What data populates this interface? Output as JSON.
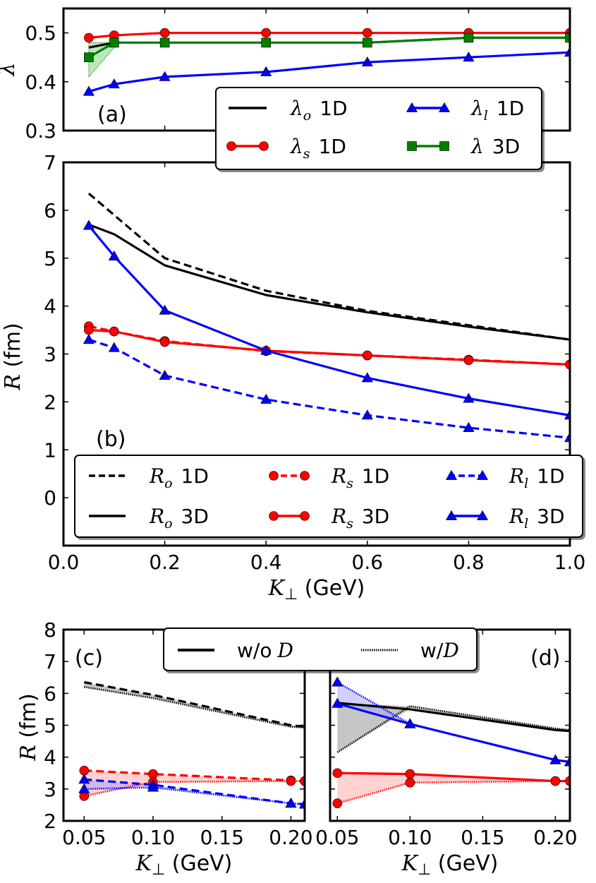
{
  "colors": {
    "black": "#000000",
    "red": "#ff0000",
    "blue": "#0000ff",
    "green": "#007f00",
    "green_fill": "#66cc66",
    "red_fill": "#ff9999",
    "blue_fill": "#9999ff",
    "gray_fill": "#808080"
  },
  "chart_data": [
    {
      "id": "a",
      "type": "line",
      "panel_label": "(a)",
      "ylabel": "λ",
      "xlim": [
        0.0,
        1.0
      ],
      "ylim": [
        0.3,
        0.55
      ],
      "yticks": [
        "0.3",
        "0.4",
        "0.5"
      ],
      "x": [
        0.05,
        0.1,
        0.2,
        0.4,
        0.6,
        0.8,
        1.0
      ],
      "series": [
        {
          "name": "λo 1D",
          "symbol": "λ",
          "sub": "o",
          "dim": "1D",
          "color": "black",
          "marker": "none",
          "dash": false,
          "values": [
            0.47,
            0.48,
            0.48,
            0.48,
            0.48,
            0.49,
            0.49
          ]
        },
        {
          "name": "λs 1D",
          "symbol": "λ",
          "sub": "s",
          "dim": "1D",
          "color": "red",
          "marker": "circle",
          "dash": false,
          "values": [
            0.49,
            0.495,
            0.5,
            0.5,
            0.5,
            0.5,
            0.5
          ]
        },
        {
          "name": "λl 1D",
          "symbol": "λ",
          "sub": "l",
          "dim": "1D",
          "color": "blue",
          "marker": "triangle",
          "dash": false,
          "values": [
            0.38,
            0.395,
            0.41,
            0.42,
            0.44,
            0.45,
            0.46
          ]
        },
        {
          "name": "λ 3D",
          "symbol": "λ",
          "sub": "",
          "dim": "3D",
          "color": "green",
          "marker": "square",
          "dash": false,
          "values": [
            0.45,
            0.48,
            0.48,
            0.48,
            0.48,
            0.49,
            0.49
          ]
        }
      ],
      "shaded": [
        {
          "color": "green_fill",
          "edge": "green",
          "x": [
            0.05,
            0.1
          ],
          "upper": [
            0.48,
            0.48
          ],
          "lower": [
            0.41,
            0.47
          ]
        }
      ],
      "legend": {
        "placement": "lower-right",
        "columns": 2
      }
    },
    {
      "id": "b",
      "type": "line",
      "panel_label": "(b)",
      "ylabel": "R (fm)",
      "xlabel": "K⊥ (GeV)",
      "xlim": [
        0.0,
        1.0
      ],
      "ylim": [
        -1,
        7
      ],
      "xticks": [
        "0.0",
        "0.2",
        "0.4",
        "0.6",
        "0.8",
        "1.0"
      ],
      "yticks": [
        "0",
        "1",
        "2",
        "3",
        "4",
        "5",
        "6",
        "7"
      ],
      "series": [
        {
          "name": "Ro 1D",
          "symbol": "R",
          "sub": "o",
          "dim": "1D",
          "color": "black",
          "marker": "none",
          "dash": true,
          "x": [
            0.05,
            0.1,
            0.2,
            0.4,
            0.6,
            0.8,
            1.0
          ],
          "values": [
            6.35,
            5.9,
            5.0,
            4.32,
            3.9,
            3.6,
            3.3
          ]
        },
        {
          "name": "Rs 1D",
          "symbol": "R",
          "sub": "s",
          "dim": "1D",
          "color": "red",
          "marker": "circle",
          "dash": true,
          "x": [
            0.05,
            0.1,
            0.2,
            0.4,
            0.6,
            0.8,
            1.0
          ],
          "values": [
            3.58,
            3.47,
            3.27,
            3.06,
            2.97,
            2.88,
            2.78
          ]
        },
        {
          "name": "Rl 1D",
          "symbol": "R",
          "sub": "l",
          "dim": "1D",
          "color": "blue",
          "marker": "triangle",
          "dash": true,
          "x": [
            0.05,
            0.1,
            0.2,
            0.4,
            0.6,
            0.8,
            1.0
          ],
          "values": [
            3.3,
            3.13,
            2.55,
            2.05,
            1.72,
            1.46,
            1.25
          ]
        },
        {
          "name": "Ro 3D",
          "symbol": "R",
          "sub": "o",
          "dim": "3D",
          "color": "black",
          "marker": "none",
          "dash": false,
          "x": [
            0.05,
            0.1,
            0.2,
            0.4,
            0.6,
            0.8,
            1.0
          ],
          "values": [
            5.7,
            5.5,
            4.85,
            4.23,
            3.87,
            3.57,
            3.3
          ]
        },
        {
          "name": "Rs 3D",
          "symbol": "R",
          "sub": "s",
          "dim": "3D",
          "color": "red",
          "marker": "circle",
          "dash": false,
          "x": [
            0.05,
            0.1,
            0.2,
            0.4,
            0.6,
            0.8,
            1.0
          ],
          "values": [
            3.5,
            3.47,
            3.25,
            3.07,
            2.97,
            2.87,
            2.78
          ]
        },
        {
          "name": "Rl 3D",
          "symbol": "R",
          "sub": "l",
          "dim": "3D",
          "color": "blue",
          "marker": "triangle",
          "dash": false,
          "x": [
            0.05,
            0.1,
            0.2,
            0.4,
            0.6,
            0.8,
            1.0
          ],
          "values": [
            5.68,
            5.04,
            3.91,
            3.07,
            2.5,
            2.07,
            1.72
          ]
        }
      ],
      "legend": {
        "placement": "bottom",
        "columns": 3
      }
    },
    {
      "id": "c",
      "type": "line",
      "panel_label": "(c)",
      "ylabel": "R (fm)",
      "xlabel": "K⊥ (GeV)",
      "xlim": [
        0.035,
        0.21
      ],
      "ylim": [
        2,
        8
      ],
      "xticks": [
        "0.05",
        "0.10",
        "0.15",
        "0.20"
      ],
      "yticks": [
        "2",
        "3",
        "4",
        "5",
        "6",
        "7",
        "8"
      ],
      "series": [
        {
          "name": "Ro w/o D",
          "color": "black",
          "marker": "none",
          "dash": true,
          "x": [
            0.05,
            0.1,
            0.2,
            0.21
          ],
          "values": [
            6.35,
            5.95,
            5.0,
            4.95
          ]
        },
        {
          "name": "Ro w/D",
          "color": "black",
          "marker": "none",
          "dotted": true,
          "x": [
            0.05,
            0.1,
            0.2,
            0.21
          ],
          "values": [
            6.2,
            5.85,
            4.95,
            4.93
          ]
        },
        {
          "name": "Rs w/o D",
          "color": "red",
          "marker": "circle",
          "dash": true,
          "x": [
            0.05,
            0.1,
            0.2,
            0.21
          ],
          "values": [
            3.58,
            3.47,
            3.27,
            3.25
          ]
        },
        {
          "name": "Rs w/D",
          "color": "red",
          "marker": "circle",
          "dotted": true,
          "x": [
            0.05,
            0.1,
            0.2,
            0.21
          ],
          "values": [
            2.78,
            3.22,
            3.25,
            3.25
          ]
        },
        {
          "name": "Rl w/o D",
          "color": "blue",
          "marker": "triangle",
          "dash": true,
          "x": [
            0.05,
            0.1,
            0.2,
            0.21
          ],
          "values": [
            3.3,
            3.13,
            2.55,
            2.52
          ]
        },
        {
          "name": "Rl w/D",
          "color": "blue",
          "marker": "triangle",
          "dotted": true,
          "x": [
            0.05,
            0.1,
            0.2,
            0.21
          ],
          "values": [
            3.0,
            3.05,
            2.55,
            2.52
          ]
        }
      ],
      "shaded": [
        {
          "color": "gray_fill",
          "x": [
            0.05,
            0.1,
            0.2,
            0.21
          ],
          "upper": [
            6.35,
            5.95,
            5.0,
            4.95
          ],
          "lower": [
            6.2,
            5.85,
            4.95,
            4.93
          ]
        },
        {
          "color": "red_fill",
          "x": [
            0.05,
            0.1,
            0.2,
            0.21
          ],
          "upper": [
            3.58,
            3.47,
            3.27,
            3.25
          ],
          "lower": [
            2.78,
            3.22,
            3.25,
            3.25
          ]
        },
        {
          "color": "blue_fill",
          "x": [
            0.05,
            0.1,
            0.2,
            0.21
          ],
          "upper": [
            3.3,
            3.13,
            2.55,
            2.52
          ],
          "lower": [
            3.0,
            3.05,
            2.55,
            2.52
          ]
        }
      ]
    },
    {
      "id": "d",
      "type": "line",
      "panel_label": "(d)",
      "xlabel": "K⊥ (GeV)",
      "xlim": [
        0.045,
        0.21
      ],
      "ylim": [
        2,
        8
      ],
      "xticks": [
        "0.05",
        "0.10",
        "0.15",
        "0.20"
      ],
      "series": [
        {
          "name": "Ro w/o D",
          "color": "black",
          "marker": "none",
          "x": [
            0.05,
            0.1,
            0.2,
            0.21
          ],
          "values": [
            5.7,
            5.5,
            4.85,
            4.82
          ]
        },
        {
          "name": "Ro w/D",
          "color": "black",
          "marker": "none",
          "dotted": true,
          "x": [
            0.05,
            0.1,
            0.2,
            0.21
          ],
          "values": [
            4.15,
            5.6,
            4.9,
            4.85
          ]
        },
        {
          "name": "Rs w/o D",
          "color": "red",
          "marker": "circle",
          "x": [
            0.05,
            0.1,
            0.2,
            0.21
          ],
          "values": [
            3.5,
            3.47,
            3.25,
            3.25
          ]
        },
        {
          "name": "Rs w/D",
          "color": "red",
          "marker": "circle",
          "dotted": true,
          "x": [
            0.05,
            0.1,
            0.2,
            0.21
          ],
          "values": [
            2.55,
            3.2,
            3.25,
            3.25
          ]
        },
        {
          "name": "Rl w/o D",
          "color": "blue",
          "marker": "triangle",
          "x": [
            0.05,
            0.1,
            0.2,
            0.21
          ],
          "values": [
            5.68,
            5.04,
            3.91,
            3.85
          ]
        },
        {
          "name": "Rl w/D",
          "color": "blue",
          "marker": "triangle",
          "dotted": true,
          "x": [
            0.05,
            0.1,
            0.2,
            0.21
          ],
          "values": [
            6.35,
            5.04,
            3.91,
            3.85
          ]
        }
      ],
      "shaded": [
        {
          "color": "gray_fill",
          "x": [
            0.05,
            0.1,
            0.2,
            0.21
          ],
          "upper": [
            5.7,
            5.6,
            4.9,
            4.85
          ],
          "lower": [
            4.15,
            5.5,
            4.85,
            4.82
          ]
        },
        {
          "color": "red_fill",
          "x": [
            0.05,
            0.1,
            0.2,
            0.21
          ],
          "upper": [
            3.5,
            3.47,
            3.25,
            3.25
          ],
          "lower": [
            2.55,
            3.2,
            3.25,
            3.25
          ]
        },
        {
          "color": "blue_fill",
          "x": [
            0.05,
            0.1,
            0.2,
            0.21
          ],
          "upper": [
            6.35,
            5.04,
            3.91,
            3.85
          ],
          "lower": [
            5.68,
            5.04,
            3.91,
            3.85
          ]
        }
      ]
    }
  ],
  "legend_cd": {
    "entries": [
      {
        "text": "w/o",
        "symbol": "D",
        "style": "solid"
      },
      {
        "text": "w/",
        "symbol": "D",
        "style": "dotted"
      }
    ]
  }
}
